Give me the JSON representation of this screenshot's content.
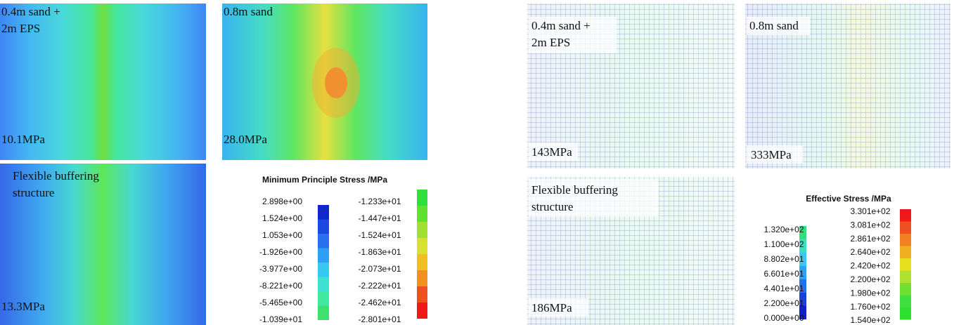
{
  "panels": [
    {
      "label_lines": [
        "0.4m sand +",
        "2m EPS"
      ],
      "value": "10.1MPa"
    },
    {
      "label_lines": [
        "0.8m sand"
      ],
      "value": "28.0MPa"
    },
    {
      "label_lines": [
        "Flexible buffering",
        "structure"
      ],
      "value": "13.3MPa"
    },
    {
      "label_lines": [
        "0.4m sand +",
        "2m EPS"
      ],
      "value": "143MPa"
    },
    {
      "label_lines": [
        "0.8m sand"
      ],
      "value": "333MPa"
    },
    {
      "label_lines": [
        "Flexible buffering",
        "structure"
      ],
      "value": "186MPa"
    }
  ],
  "legends": [
    {
      "title": "Minimum Principle Stress /MPa",
      "left": [
        "2.898e+00",
        "1.524e+00",
        "1.053e+00",
        "-1.926e+00",
        "-3.977e+00",
        "-8.221e+00",
        "-5.465e+00",
        "-1.039e+01"
      ],
      "right": [
        "-1.233e+01",
        "-1.447e+01",
        "-1.524e+01",
        "-1.863e+01",
        "-2.073e+01",
        "-2.222e+01",
        "-2.462e+01",
        "-2.801e+01"
      ]
    },
    {
      "title": "Effective Stress /MPa",
      "left": [
        "1.320e+02",
        "1.100e+02",
        "8.802e+01",
        "6.601e+01",
        "4.401e+01",
        "2.200e+01",
        "0.000e+00"
      ],
      "right": [
        "3.301e+02",
        "3.081e+02",
        "2.861e+02",
        "2.640e+02",
        "2.420e+02",
        "2.200e+02",
        "1.980e+02",
        "1.760e+02",
        "1.540e+02"
      ]
    }
  ]
}
